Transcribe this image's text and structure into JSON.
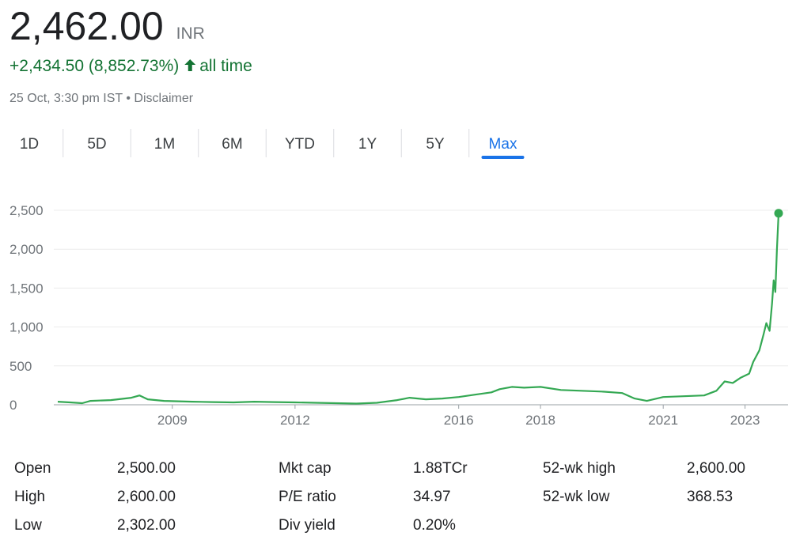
{
  "header": {
    "price": "2,462.00",
    "currency": "INR",
    "change": "+2,434.50 (8,852.73%)",
    "period": "all time",
    "timestamp": "25 Oct, 3:30 pm IST",
    "separator": "•",
    "disclaimer": "Disclaimer"
  },
  "tabs": {
    "items": [
      "1D",
      "5D",
      "1M",
      "6M",
      "YTD",
      "1Y",
      "5Y",
      "Max"
    ],
    "active": "Max"
  },
  "chart_data": {
    "type": "line",
    "x": [
      2006.2,
      2006.5,
      2006.8,
      2007.0,
      2007.5,
      2008.0,
      2008.2,
      2008.4,
      2008.8,
      2009.5,
      2010.0,
      2010.5,
      2011.0,
      2011.5,
      2012.0,
      2012.5,
      2013.0,
      2013.5,
      2014.0,
      2014.5,
      2014.8,
      2015.2,
      2015.6,
      2016.0,
      2016.4,
      2016.8,
      2017.0,
      2017.3,
      2017.6,
      2018.0,
      2018.5,
      2019.0,
      2019.5,
      2020.0,
      2020.3,
      2020.6,
      2021.0,
      2021.5,
      2022.0,
      2022.3,
      2022.5,
      2022.7,
      2022.9,
      2023.1,
      2023.2,
      2023.35,
      2023.45,
      2023.52,
      2023.6,
      2023.66,
      2023.7,
      2023.74,
      2023.78,
      2023.82
    ],
    "series": [
      {
        "color": "#34a853",
        "values": [
          40,
          30,
          20,
          50,
          60,
          90,
          120,
          70,
          50,
          40,
          35,
          30,
          40,
          35,
          30,
          25,
          20,
          15,
          25,
          60,
          90,
          70,
          80,
          100,
          130,
          160,
          200,
          230,
          220,
          230,
          190,
          180,
          170,
          150,
          80,
          50,
          100,
          110,
          120,
          180,
          300,
          280,
          350,
          400,
          550,
          700,
          900,
          1050,
          950,
          1300,
          1600,
          1450,
          2000,
          2462
        ]
      }
    ],
    "xlim": [
      2006.2,
      2023.82
    ],
    "xticks": [
      2009,
      2012,
      2016,
      2018,
      2021,
      2023
    ],
    "ylim": [
      0,
      2500
    ],
    "yticks": [
      0,
      500,
      {
        "value": 1000,
        "label": "1,000"
      },
      {
        "value": 1500,
        "label": "1,500"
      },
      {
        "value": 2000,
        "label": "2,000"
      },
      {
        "value": 2500,
        "label": "2,500"
      }
    ],
    "grid": true
  },
  "stats": {
    "columns": [
      [
        {
          "label": "Open",
          "value": "2,500.00"
        },
        {
          "label": "High",
          "value": "2,600.00"
        },
        {
          "label": "Low",
          "value": "2,302.00"
        }
      ],
      [
        {
          "label": "Mkt cap",
          "value": "1.88TCr"
        },
        {
          "label": "P/E ratio",
          "value": "34.97"
        },
        {
          "label": "Div yield",
          "value": "0.20%"
        }
      ],
      [
        {
          "label": "52-wk high",
          "value": "2,600.00"
        },
        {
          "label": "52-wk low",
          "value": "368.53"
        }
      ]
    ]
  }
}
